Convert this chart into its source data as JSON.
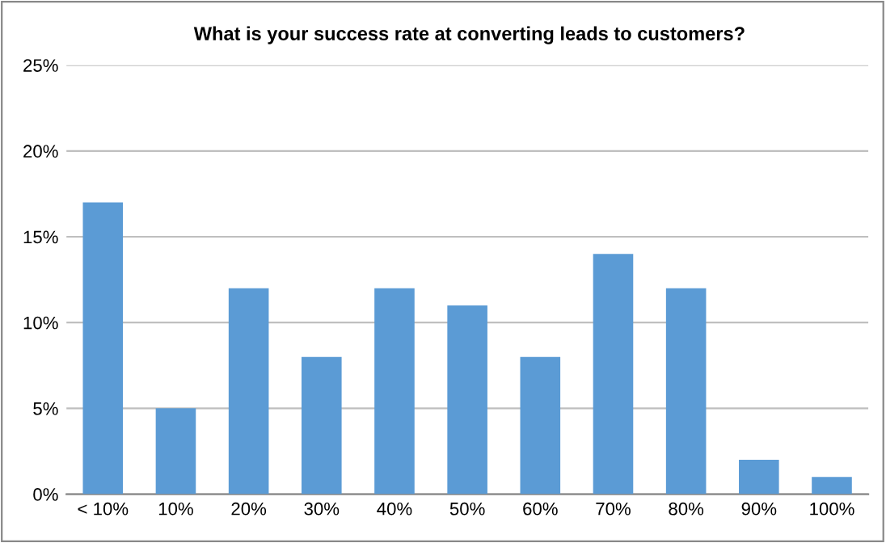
{
  "chart_data": {
    "type": "bar",
    "title": "What is your success rate at converting leads to customers?",
    "categories": [
      "< 10%",
      "10%",
      "20%",
      "30%",
      "40%",
      "50%",
      "60%",
      "70%",
      "80%",
      "90%",
      "100%"
    ],
    "values": [
      17,
      5,
      12,
      8,
      12,
      11,
      8,
      14,
      12,
      2,
      1
    ],
    "color": "#5b9bd5",
    "ylim": [
      0,
      25
    ],
    "yticks": [
      {
        "value": 0,
        "label": "0%"
      },
      {
        "value": 5,
        "label": "5%"
      },
      {
        "value": 10,
        "label": "10%"
      },
      {
        "value": 15,
        "label": "15%"
      },
      {
        "value": 20,
        "label": "20%"
      },
      {
        "value": 25,
        "label": "25%"
      }
    ],
    "grid": "y"
  }
}
